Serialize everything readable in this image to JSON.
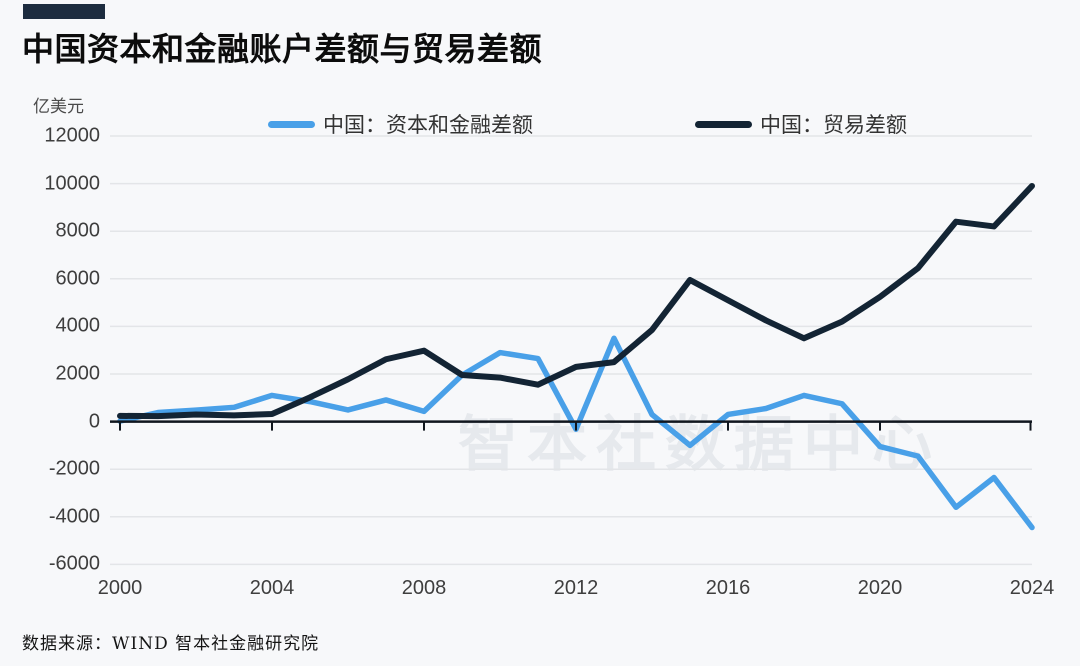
{
  "header": {
    "title": "中国资本和金融账户差额与贸易差额"
  },
  "chart": {
    "unit_label": "亿美元",
    "watermark": "智本社数据中心",
    "legend": [
      {
        "label": "中国：资本和金融差额"
      },
      {
        "label": "中国：贸易差额"
      }
    ]
  },
  "chart_data": {
    "type": "line",
    "title": "中国资本和金融账户差额与贸易差额",
    "ylabel": "亿美元",
    "xlabel": "",
    "x": [
      2000,
      2001,
      2002,
      2003,
      2004,
      2005,
      2006,
      2007,
      2008,
      2009,
      2010,
      2011,
      2012,
      2013,
      2014,
      2015,
      2016,
      2017,
      2018,
      2019,
      2020,
      2021,
      2022,
      2023,
      2024
    ],
    "series": [
      {
        "name": "中国：资本和金融差额",
        "color": "#49a0e8",
        "values": [
          20,
          380,
          480,
          600,
          1100,
          840,
          490,
          910,
          430,
          1950,
          2900,
          2650,
          -320,
          3500,
          300,
          -1000,
          300,
          550,
          1100,
          750,
          -1050,
          -1450,
          -3600,
          -2350,
          -4450
        ]
      },
      {
        "name": "中国：贸易差额",
        "color": "#132434",
        "values": [
          240,
          230,
          300,
          260,
          320,
          1020,
          1780,
          2620,
          2980,
          1960,
          1850,
          1550,
          2300,
          2500,
          3850,
          5950,
          5100,
          4250,
          3500,
          4200,
          5240,
          6450,
          8400,
          8200,
          9900
        ]
      }
    ],
    "ylim": [
      -6000,
      12000
    ],
    "yticks": [
      12000,
      10000,
      8000,
      6000,
      4000,
      2000,
      0,
      -2000,
      -4000,
      -6000
    ],
    "xticks": [
      2000,
      2004,
      2008,
      2012,
      2016,
      2020,
      2024
    ],
    "grid": true,
    "legend_position": "top",
    "axis_colors": {
      "grid": "#e3e5e8",
      "zero_axis": "#10161e",
      "tick_text": "#3e3e3e"
    }
  },
  "footer": {
    "source": "数据来源：WIND 智本社金融研究院"
  }
}
